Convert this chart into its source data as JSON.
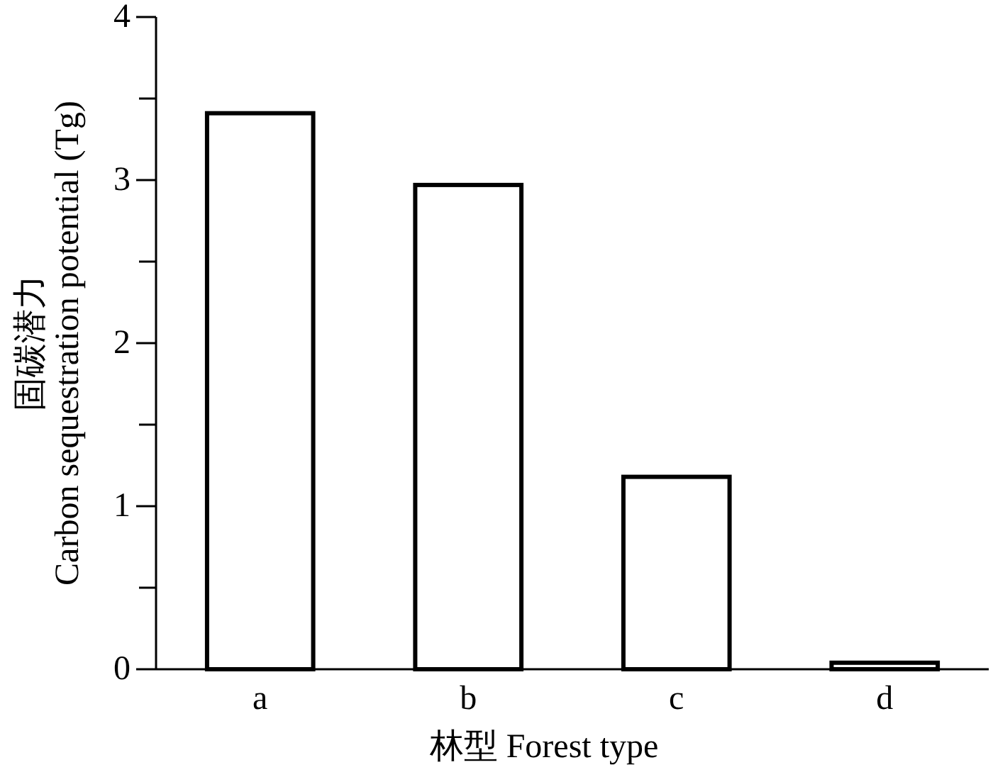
{
  "chart_data": {
    "type": "bar",
    "xlabel": "林型 Forest type",
    "ylabel": "固碳潜力\nCarbon sequestration potential (Tg)",
    "categories": [
      "a",
      "b",
      "c",
      "d"
    ],
    "values": [
      3.41,
      2.97,
      1.18,
      0.04
    ],
    "color": "#ffffff",
    "ylim": [
      0,
      4
    ],
    "yticks": [
      0,
      {
        "value": 0.5,
        "label": null
      },
      1,
      {
        "value": 1.5,
        "label": null
      },
      2,
      {
        "value": 2.5,
        "label": null
      },
      3,
      {
        "value": 3.5,
        "label": null
      },
      4
    ]
  }
}
